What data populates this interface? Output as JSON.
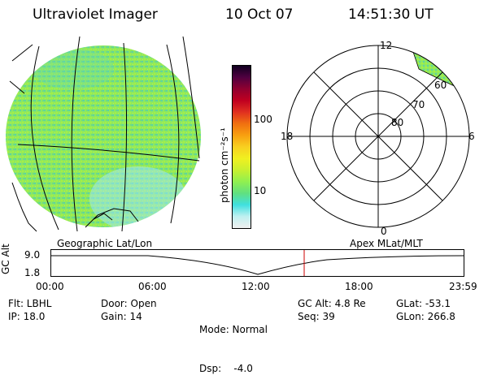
{
  "header": {
    "title": "Ultraviolet Imager",
    "date": "10 Oct 07",
    "time": "14:51:30 UT"
  },
  "colorbar": {
    "unit_label": "photon cm⁻²s⁻¹",
    "ticks": [
      "100",
      "10"
    ],
    "colors": [
      "#f0f0f0",
      "#c0f0f0",
      "#40e0e0",
      "#60e080",
      "#90f050",
      "#c8f030",
      "#f0f020",
      "#f8d020",
      "#f8a010",
      "#f07010",
      "#e03020",
      "#c00020",
      "#900030",
      "#500040",
      "#100020"
    ]
  },
  "polar_plot": {
    "mlt_labels": {
      "top": "12",
      "left": "18",
      "right": "6",
      "bottom": "0"
    },
    "lat_labels": [
      "60",
      "70",
      "80"
    ]
  },
  "timeline": {
    "y_label": "GC Alt",
    "y_ticks": [
      "9.0",
      "1.8"
    ],
    "left_caption": "Geographic Lat/Lon",
    "right_caption": "Apex MLat/MLT",
    "x_ticks": [
      "00:00",
      "06:00",
      "12:00",
      "18:00",
      "23:59"
    ],
    "current_time_marker_color": "#cc0000"
  },
  "info": {
    "col1": [
      "Flt: LBHL",
      "IP: 18.0"
    ],
    "col2": [
      "Door: Open",
      "Gain: 14"
    ],
    "col3": [
      "Mode: Normal",
      "Dsp:    -4.0"
    ],
    "col4": [
      "GC Alt: 4.8 Re",
      "Seq: 39"
    ],
    "col5": [
      "GLat: -53.1",
      "GLon: 266.8"
    ]
  }
}
